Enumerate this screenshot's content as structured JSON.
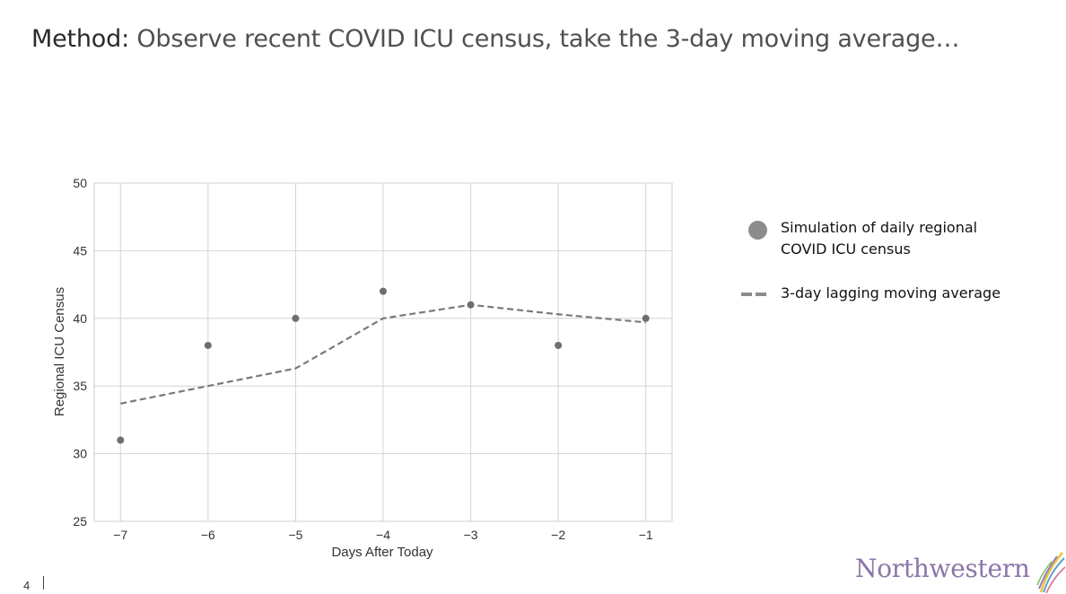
{
  "slide": {
    "title_lead": "Method:",
    "title_rest": " Observe recent COVID ICU census, take the 3-day moving average…",
    "page_number": "4",
    "brand": "Northwestern"
  },
  "chart_data": {
    "type": "scatter",
    "xlabel": "Days After Today",
    "ylabel": "Regional ICU Census",
    "x_ticks": [
      "−7",
      "−6",
      "−5",
      "−4",
      "−3",
      "−2",
      "−1"
    ],
    "y_ticks": [
      "25",
      "30",
      "35",
      "40",
      "45",
      "50"
    ],
    "xlim": [
      -7.3,
      -0.7
    ],
    "ylim": [
      25,
      50
    ],
    "grid": true,
    "legend_position": "right",
    "series": [
      {
        "name": "Simulation of daily regional COVID ICU census",
        "style": "points",
        "color": "#6e6e6e",
        "x": [
          -7,
          -6,
          -5,
          -4,
          -3,
          -2,
          -1
        ],
        "y": [
          31,
          38,
          40,
          42,
          41,
          38,
          40
        ]
      },
      {
        "name": "3-day lagging moving average",
        "style": "dashed-line",
        "color": "#7a7a7a",
        "x": [
          -7,
          -6,
          -5,
          -4,
          -3,
          -2,
          -1
        ],
        "y": [
          33.7,
          35.0,
          36.3,
          40.0,
          41.0,
          40.3,
          39.7
        ]
      }
    ]
  },
  "legend": {
    "items": [
      {
        "label": "Simulation of daily regional COVID ICU census"
      },
      {
        "label": "3-day lagging moving average"
      }
    ]
  },
  "colors": {
    "brand": "#8b76a8",
    "grid": "#d4d4d4",
    "legend_swatch": "#8c8c8c"
  }
}
